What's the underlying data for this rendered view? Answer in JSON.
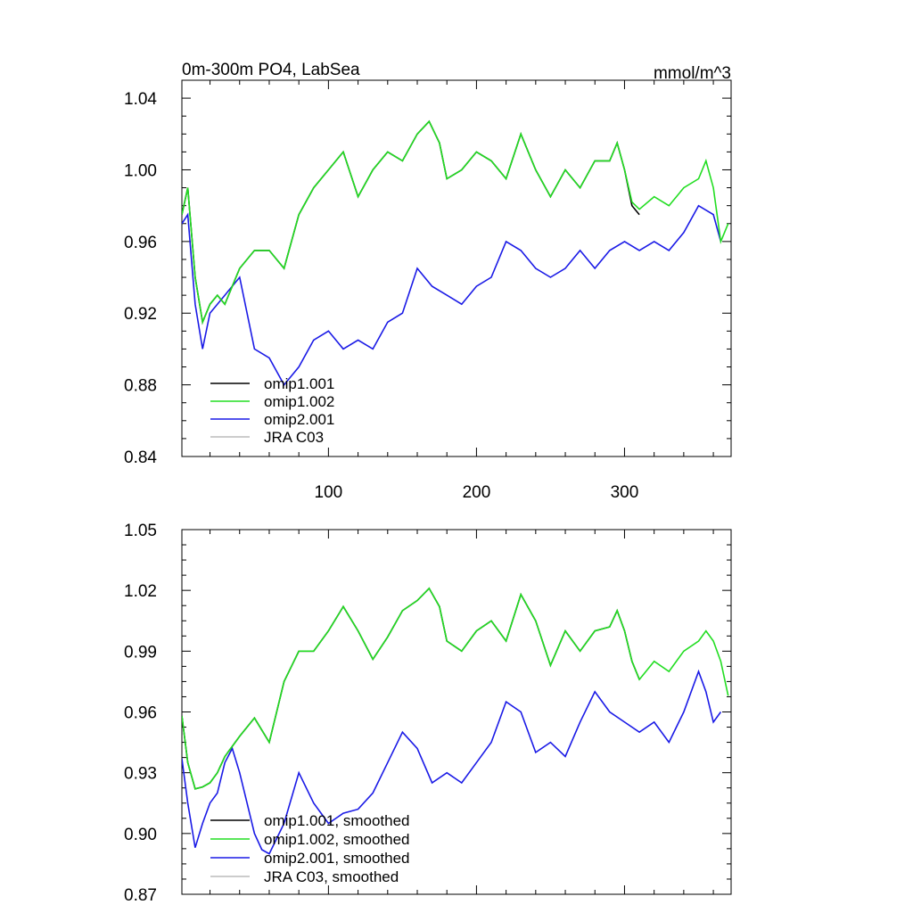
{
  "chart_data": [
    {
      "type": "line",
      "title": "0m-300m PO4, LabSea",
      "units": "mmol/m^3",
      "xlim": [
        1,
        372
      ],
      "ylim": [
        0.84,
        1.05
      ],
      "xticks": [
        100,
        200,
        300
      ],
      "xtick_labels": [
        "100",
        "200",
        "300"
      ],
      "yticks": [
        0.84,
        0.88,
        0.92,
        0.96,
        1.0,
        1.04
      ],
      "ytick_labels": [
        "0.84",
        "0.88",
        "0.92",
        "0.96",
        "1.00",
        "1.04"
      ],
      "legend_position": "bottom-left",
      "series": [
        {
          "name": "omip1.001",
          "color": "#000000",
          "x": [
            1,
            5,
            10,
            15,
            20,
            25,
            30,
            40,
            50,
            60,
            70,
            80,
            90,
            100,
            110,
            120,
            130,
            140,
            150,
            160,
            168,
            175,
            180,
            190,
            200,
            210,
            220,
            230,
            240,
            250,
            260,
            270,
            280,
            290,
            295,
            300,
            305,
            310
          ],
          "y": [
            0.975,
            0.99,
            0.94,
            0.915,
            0.925,
            0.93,
            0.925,
            0.945,
            0.955,
            0.955,
            0.945,
            0.975,
            0.99,
            1.0,
            1.01,
            0.985,
            1.0,
            1.01,
            1.005,
            1.02,
            1.027,
            1.015,
            0.995,
            1.0,
            1.01,
            1.005,
            0.995,
            1.02,
            1.0,
            0.985,
            1.0,
            0.99,
            1.005,
            1.005,
            1.015,
            1.0,
            0.98,
            0.975
          ]
        },
        {
          "name": "omip1.002",
          "color": "#22dd22",
          "x": [
            1,
            5,
            10,
            15,
            20,
            25,
            30,
            40,
            50,
            60,
            70,
            80,
            90,
            100,
            110,
            120,
            130,
            140,
            150,
            160,
            168,
            175,
            180,
            190,
            200,
            210,
            220,
            230,
            240,
            250,
            260,
            270,
            280,
            290,
            295,
            300,
            305,
            310,
            320,
            330,
            340,
            350,
            355,
            360,
            365,
            370
          ],
          "y": [
            0.975,
            0.99,
            0.94,
            0.915,
            0.925,
            0.93,
            0.925,
            0.945,
            0.955,
            0.955,
            0.945,
            0.975,
            0.99,
            1.0,
            1.01,
            0.985,
            1.0,
            1.01,
            1.005,
            1.02,
            1.027,
            1.015,
            0.995,
            1.0,
            1.01,
            1.005,
            0.995,
            1.02,
            1.0,
            0.985,
            1.0,
            0.99,
            1.005,
            1.005,
            1.015,
            1.0,
            0.982,
            0.978,
            0.985,
            0.98,
            0.99,
            0.995,
            1.005,
            0.99,
            0.96,
            0.97
          ]
        },
        {
          "name": "omip2.001",
          "color": "#1a1ae6",
          "x": [
            1,
            5,
            10,
            15,
            20,
            25,
            30,
            40,
            50,
            60,
            70,
            80,
            90,
            100,
            110,
            120,
            130,
            140,
            150,
            160,
            170,
            180,
            190,
            200,
            210,
            220,
            230,
            240,
            250,
            260,
            270,
            280,
            290,
            300,
            310,
            320,
            330,
            340,
            350,
            360,
            365
          ],
          "y": [
            0.97,
            0.975,
            0.925,
            0.9,
            0.92,
            0.925,
            0.93,
            0.94,
            0.9,
            0.895,
            0.88,
            0.89,
            0.905,
            0.91,
            0.9,
            0.905,
            0.9,
            0.915,
            0.92,
            0.945,
            0.935,
            0.93,
            0.925,
            0.935,
            0.94,
            0.96,
            0.955,
            0.945,
            0.94,
            0.945,
            0.955,
            0.945,
            0.955,
            0.96,
            0.955,
            0.96,
            0.955,
            0.965,
            0.98,
            0.975,
            0.96
          ]
        },
        {
          "name": "JRA C03",
          "color": "#bbbbbb",
          "x": [],
          "y": []
        }
      ]
    },
    {
      "type": "line",
      "title": "",
      "xlim": [
        1,
        372
      ],
      "ylim": [
        0.87,
        1.05
      ],
      "xticks": [
        100,
        200,
        300
      ],
      "yticks": [
        0.87,
        0.9,
        0.93,
        0.96,
        0.99,
        1.02,
        1.05
      ],
      "ytick_labels": [
        "0.87",
        "0.90",
        "0.93",
        "0.96",
        "0.99",
        "1.02",
        "1.05"
      ],
      "legend_position": "bottom-left",
      "series": [
        {
          "name": "omip1.001, smoothed",
          "color": "#000000",
          "x": [
            1,
            5,
            10,
            15,
            20,
            25,
            30,
            40,
            50,
            60,
            70,
            80,
            90,
            100,
            110,
            120,
            130,
            140,
            150,
            160,
            168,
            175,
            180,
            190,
            200,
            210,
            220,
            230,
            240,
            250,
            260,
            270,
            280,
            290,
            295,
            300,
            305,
            310
          ],
          "y": [
            0.958,
            0.935,
            0.922,
            0.923,
            0.925,
            0.93,
            0.938,
            0.948,
            0.957,
            0.945,
            0.975,
            0.99,
            0.99,
            1.0,
            1.012,
            1.0,
            0.986,
            0.997,
            1.01,
            1.015,
            1.021,
            1.012,
            0.995,
            0.99,
            1.0,
            1.005,
            0.995,
            1.018,
            1.005,
            0.983,
            1.0,
            0.99,
            1.0,
            1.002,
            1.01,
            1.0,
            0.985,
            0.976
          ]
        },
        {
          "name": "omip1.002, smoothed",
          "color": "#22dd22",
          "x": [
            1,
            5,
            10,
            15,
            20,
            25,
            30,
            40,
            50,
            60,
            70,
            80,
            90,
            100,
            110,
            120,
            130,
            140,
            150,
            160,
            168,
            175,
            180,
            190,
            200,
            210,
            220,
            230,
            240,
            250,
            260,
            270,
            280,
            290,
            295,
            300,
            305,
            310,
            320,
            330,
            340,
            350,
            355,
            360,
            365,
            370
          ],
          "y": [
            0.958,
            0.935,
            0.922,
            0.923,
            0.925,
            0.93,
            0.938,
            0.948,
            0.957,
            0.945,
            0.975,
            0.99,
            0.99,
            1.0,
            1.012,
            1.0,
            0.986,
            0.997,
            1.01,
            1.015,
            1.021,
            1.012,
            0.995,
            0.99,
            1.0,
            1.005,
            0.995,
            1.018,
            1.005,
            0.983,
            1.0,
            0.99,
            1.0,
            1.002,
            1.01,
            1.0,
            0.985,
            0.976,
            0.985,
            0.98,
            0.99,
            0.995,
            1.0,
            0.995,
            0.985,
            0.968
          ]
        },
        {
          "name": "omip2.001, smoothed",
          "color": "#1a1ae6",
          "x": [
            1,
            5,
            10,
            15,
            20,
            25,
            30,
            35,
            40,
            45,
            50,
            55,
            60,
            70,
            80,
            90,
            100,
            110,
            120,
            130,
            140,
            150,
            160,
            170,
            180,
            190,
            200,
            210,
            220,
            230,
            240,
            250,
            260,
            270,
            280,
            290,
            300,
            310,
            320,
            330,
            340,
            350,
            355,
            360,
            365
          ],
          "y": [
            0.937,
            0.915,
            0.893,
            0.905,
            0.915,
            0.92,
            0.935,
            0.942,
            0.93,
            0.915,
            0.9,
            0.892,
            0.89,
            0.905,
            0.93,
            0.915,
            0.905,
            0.91,
            0.912,
            0.92,
            0.935,
            0.95,
            0.942,
            0.925,
            0.93,
            0.925,
            0.935,
            0.945,
            0.965,
            0.96,
            0.94,
            0.945,
            0.938,
            0.955,
            0.97,
            0.96,
            0.955,
            0.95,
            0.955,
            0.945,
            0.96,
            0.98,
            0.97,
            0.955,
            0.96
          ]
        },
        {
          "name": "JRA C03, smoothed",
          "color": "#bbbbbb",
          "x": [],
          "y": []
        }
      ]
    }
  ]
}
